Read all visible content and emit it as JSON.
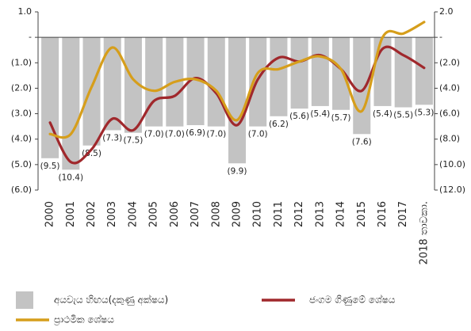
{
  "chart_data": {
    "type": "bar_line",
    "categories": [
      "2000",
      "2001",
      "2002",
      "2003",
      "2004",
      "2005",
      "2006",
      "2007",
      "2008",
      "2009",
      "2010",
      "2011",
      "2012",
      "2013",
      "2014",
      "2015",
      "2016",
      "2017",
      "2018 තාවකා."
    ],
    "series": [
      {
        "name": "අයවැය හිඟය(දකුණු අක්ෂය)",
        "type": "bar",
        "axis": "y2",
        "color": "#c3c3c3",
        "values": [
          -9.5,
          -10.4,
          -8.5,
          -7.3,
          -7.5,
          -7.0,
          -7.0,
          -6.9,
          -7.0,
          -9.9,
          -7.0,
          -6.2,
          -5.6,
          -5.4,
          -5.7,
          -7.6,
          -5.4,
          -5.5,
          -5.3
        ],
        "value_labels": [
          "(9.5)",
          "(10.4)",
          "(8.5)",
          "(7.3)",
          "(7.5)",
          "(7.0)",
          "(7.0)",
          "(6.9)",
          "(7.0)",
          "(9.9)",
          "(7.0)",
          "(6.2)",
          "(5.6)",
          "(5.4)",
          "(5.7)",
          "(7.6)",
          "(5.4)",
          "(5.5)",
          "(5.3)"
        ]
      },
      {
        "name": "ජංගම ගිණුමේ ශේෂය",
        "type": "line",
        "color": "#a0282c",
        "values": [
          -3.35,
          -4.9,
          -4.4,
          -3.2,
          -3.65,
          -2.5,
          -2.3,
          -1.6,
          -2.2,
          -3.45,
          -1.65,
          -0.8,
          -0.95,
          -0.7,
          -1.25,
          -2.1,
          -0.45,
          -0.7,
          -1.2
        ]
      },
      {
        "name": "ප්‍රාථමික ශේෂය",
        "type": "line",
        "color": "#d69e1b",
        "values": [
          -3.8,
          -3.8,
          -1.95,
          -0.4,
          -1.65,
          -2.1,
          -1.75,
          -1.65,
          -2.1,
          -3.25,
          -1.4,
          -1.25,
          -0.95,
          -0.75,
          -1.25,
          -2.9,
          0.0,
          0.15,
          0.6
        ]
      }
    ],
    "ylim": [
      -6,
      1
    ],
    "yticks": [
      {
        "value": 1,
        "label": "1.0"
      },
      {
        "value": 0,
        "label": "-"
      },
      {
        "value": -1,
        "label": "(1.0)"
      },
      {
        "value": -2,
        "label": "(2.0)"
      },
      {
        "value": -3,
        "label": "(3.0)"
      },
      {
        "value": -4,
        "label": "(4.0)"
      },
      {
        "value": -5,
        "label": "(5.0)"
      },
      {
        "value": -6,
        "label": "(6.0)"
      }
    ],
    "y2lim": [
      -12,
      2
    ],
    "y2ticks": [
      {
        "value": 2,
        "label": "2.0"
      },
      {
        "value": 0,
        "label": "-"
      },
      {
        "value": -2,
        "label": "(2.0)"
      },
      {
        "value": -4,
        "label": "(4.0)"
      },
      {
        "value": -6,
        "label": "(6.0)"
      },
      {
        "value": -8,
        "label": "(8.0)"
      },
      {
        "value": -10,
        "label": "(10.0)"
      },
      {
        "value": -12,
        "label": "(12.0)"
      }
    ]
  }
}
